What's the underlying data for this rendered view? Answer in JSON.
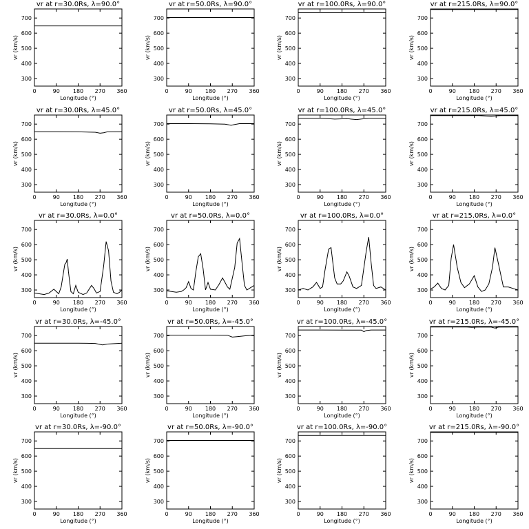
{
  "figure": {
    "title_template": "v_r at r={r}Rs, λ={lat}°",
    "rows_lat": [
      "90.0",
      "45.0",
      "0.0",
      "-45.0",
      "-90.0"
    ],
    "cols_r": [
      "30.0",
      "50.0",
      "100.0",
      "215.0"
    ]
  },
  "chart_data": [
    {
      "type": "line",
      "title": "vr at r=30.0Rs, λ=90.0°",
      "xlabel": "Longitude (°)",
      "ylabel": "vr (km/s)",
      "xlim": [
        0,
        360
      ],
      "ylim": [
        250,
        760
      ],
      "xticks": [
        0,
        90,
        180,
        270,
        360
      ],
      "yticks": [
        300,
        400,
        500,
        600,
        700
      ],
      "x": [
        0,
        360
      ],
      "y": [
        648,
        648
      ]
    },
    {
      "type": "line",
      "title": "vr at r=50.0Rs, λ=90.0°",
      "xlabel": "Longitude (°)",
      "ylabel": "vr (km/s)",
      "xlim": [
        0,
        360
      ],
      "ylim": [
        250,
        760
      ],
      "xticks": [
        0,
        90,
        180,
        270,
        360
      ],
      "yticks": [
        300,
        400,
        500,
        600,
        700
      ],
      "x": [
        0,
        360
      ],
      "y": [
        703,
        703
      ]
    },
    {
      "type": "line",
      "title": "vr at r=100.0Rs, λ=90.0°",
      "xlabel": "Longitude (°)",
      "ylabel": "vr (km/s)",
      "xlim": [
        0,
        360
      ],
      "ylim": [
        250,
        760
      ],
      "xticks": [
        0,
        90,
        180,
        270,
        360
      ],
      "yticks": [
        300,
        400,
        500,
        600,
        700
      ],
      "x": [
        0,
        360
      ],
      "y": [
        735,
        735
      ]
    },
    {
      "type": "line",
      "title": "vr at r=215.0Rs, λ=90.0°",
      "xlabel": "Longitude (°)",
      "ylabel": "vr (km/s)",
      "xlim": [
        0,
        360
      ],
      "ylim": [
        250,
        760
      ],
      "xticks": [
        0,
        90,
        180,
        270,
        360
      ],
      "yticks": [
        300,
        400,
        500,
        600,
        700
      ],
      "x": [
        0,
        360
      ],
      "y": [
        757,
        757
      ]
    },
    {
      "type": "line",
      "title": "vr at r=30.0Rs, λ=45.0°",
      "xlabel": "Longitude (°)",
      "ylabel": "vr (km/s)",
      "xlim": [
        0,
        360
      ],
      "ylim": [
        250,
        760
      ],
      "xticks": [
        0,
        90,
        180,
        270,
        360
      ],
      "yticks": [
        300,
        400,
        500,
        600,
        700
      ],
      "x": [
        0,
        90,
        180,
        250,
        270,
        285,
        300,
        360
      ],
      "y": [
        650,
        650,
        649,
        646,
        640,
        643,
        649,
        650
      ]
    },
    {
      "type": "line",
      "title": "vr at r=50.0Rs, λ=45.0°",
      "xlabel": "Longitude (°)",
      "ylabel": "vr (km/s)",
      "xlim": [
        0,
        360
      ],
      "ylim": [
        250,
        760
      ],
      "xticks": [
        0,
        90,
        180,
        270,
        360
      ],
      "yticks": [
        300,
        400,
        500,
        600,
        700
      ],
      "x": [
        0,
        90,
        180,
        240,
        265,
        280,
        300,
        360
      ],
      "y": [
        703,
        703,
        702,
        700,
        692,
        697,
        703,
        703
      ]
    },
    {
      "type": "line",
      "title": "vr at r=100.0Rs, λ=45.0°",
      "xlabel": "Longitude (°)",
      "ylabel": "vr (km/s)",
      "xlim": [
        0,
        360
      ],
      "ylim": [
        250,
        760
      ],
      "xticks": [
        0,
        90,
        180,
        270,
        360
      ],
      "yticks": [
        300,
        400,
        500,
        600,
        700
      ],
      "x": [
        0,
        100,
        150,
        200,
        240,
        260,
        290,
        360
      ],
      "y": [
        738,
        738,
        733,
        736,
        730,
        734,
        738,
        738
      ]
    },
    {
      "type": "line",
      "title": "vr at r=215.0Rs, λ=45.0°",
      "xlabel": "Longitude (°)",
      "ylabel": "vr (km/s)",
      "xlim": [
        0,
        360
      ],
      "ylim": [
        250,
        760
      ],
      "xticks": [
        0,
        90,
        180,
        270,
        360
      ],
      "yticks": [
        300,
        400,
        500,
        600,
        700
      ],
      "x": [
        0,
        200,
        250,
        270,
        290,
        360
      ],
      "y": [
        757,
        757,
        751,
        754,
        757,
        757
      ]
    },
    {
      "type": "line",
      "title": "vr at r=30.0Rs, λ=0.0°",
      "xlabel": "Longitude (°)",
      "ylabel": "vr (km/s)",
      "xlim": [
        0,
        360
      ],
      "ylim": [
        250,
        760
      ],
      "xticks": [
        0,
        90,
        180,
        270,
        360
      ],
      "yticks": [
        300,
        400,
        500,
        600,
        700
      ],
      "x": [
        0,
        20,
        40,
        60,
        80,
        90,
        100,
        110,
        120,
        125,
        130,
        135,
        140,
        150,
        160,
        170,
        180,
        200,
        215,
        235,
        245,
        255,
        270,
        285,
        295,
        305,
        315,
        325,
        340,
        350,
        360
      ],
      "y": [
        280,
        275,
        270,
        280,
        305,
        290,
        275,
        320,
        420,
        470,
        480,
        505,
        420,
        290,
        275,
        330,
        285,
        270,
        280,
        330,
        310,
        280,
        290,
        460,
        620,
        560,
        360,
        285,
        275,
        285,
        300
      ]
    },
    {
      "type": "line",
      "title": "vr at r=50.0Rs, λ=0.0°",
      "xlabel": "Longitude (°)",
      "ylabel": "vr (km/s)",
      "xlim": [
        0,
        360
      ],
      "ylim": [
        250,
        760
      ],
      "xticks": [
        0,
        90,
        180,
        270,
        360
      ],
      "yticks": [
        300,
        400,
        500,
        600,
        700
      ],
      "x": [
        0,
        20,
        40,
        60,
        70,
        80,
        90,
        100,
        110,
        120,
        130,
        140,
        150,
        160,
        170,
        180,
        200,
        215,
        230,
        240,
        250,
        260,
        280,
        290,
        300,
        310,
        320,
        330,
        345,
        360
      ],
      "y": [
        295,
        290,
        285,
        290,
        300,
        315,
        355,
        310,
        300,
        420,
        520,
        540,
        440,
        300,
        350,
        305,
        300,
        335,
        380,
        350,
        320,
        305,
        450,
        610,
        640,
        480,
        330,
        300,
        315,
        330
      ]
    },
    {
      "type": "line",
      "title": "vr at r=100.0Rs, λ=0.0°",
      "xlabel": "Longitude (°)",
      "ylabel": "vr (km/s)",
      "xlim": [
        0,
        360
      ],
      "ylim": [
        250,
        760
      ],
      "xticks": [
        0,
        90,
        180,
        270,
        360
      ],
      "yticks": [
        300,
        400,
        500,
        600,
        700
      ],
      "x": [
        0,
        20,
        40,
        60,
        75,
        90,
        100,
        110,
        125,
        135,
        150,
        160,
        175,
        185,
        200,
        210,
        225,
        240,
        260,
        280,
        290,
        300,
        310,
        320,
        340,
        360
      ],
      "y": [
        300,
        310,
        300,
        320,
        350,
        310,
        320,
        430,
        570,
        580,
        380,
        340,
        340,
        360,
        420,
        390,
        320,
        310,
        330,
        560,
        650,
        480,
        330,
        310,
        320,
        300
      ]
    },
    {
      "type": "line",
      "title": "vr at r=215.0Rs, λ=0.0°",
      "xlabel": "Longitude (°)",
      "ylabel": "vr (km/s)",
      "xlim": [
        0,
        360
      ],
      "ylim": [
        250,
        760
      ],
      "xticks": [
        0,
        90,
        180,
        270,
        360
      ],
      "yticks": [
        300,
        400,
        500,
        600,
        700
      ],
      "x": [
        0,
        15,
        30,
        45,
        60,
        75,
        85,
        95,
        110,
        125,
        140,
        160,
        180,
        195,
        210,
        225,
        240,
        255,
        265,
        280,
        300,
        320,
        340,
        360
      ],
      "y": [
        305,
        320,
        345,
        310,
        300,
        330,
        510,
        600,
        450,
        350,
        315,
        340,
        395,
        320,
        290,
        300,
        340,
        450,
        580,
        470,
        320,
        320,
        310,
        300
      ]
    },
    {
      "type": "line",
      "title": "vr at r=30.0Rs, λ=-45.0°",
      "xlabel": "Longitude (°)",
      "ylabel": "vr (km/s)",
      "xlim": [
        0,
        360
      ],
      "ylim": [
        250,
        760
      ],
      "xticks": [
        0,
        90,
        180,
        270,
        360
      ],
      "yticks": [
        300,
        400,
        500,
        600,
        700
      ],
      "x": [
        0,
        90,
        180,
        250,
        280,
        300,
        360
      ],
      "y": [
        650,
        650,
        650,
        648,
        638,
        644,
        650
      ]
    },
    {
      "type": "line",
      "title": "vr at r=50.0Rs, λ=-45.0°",
      "xlabel": "Longitude (°)",
      "ylabel": "vr (km/s)",
      "xlim": [
        0,
        360
      ],
      "ylim": [
        250,
        760
      ],
      "xticks": [
        0,
        90,
        180,
        270,
        360
      ],
      "yticks": [
        300,
        400,
        500,
        600,
        700
      ],
      "x": [
        0,
        90,
        180,
        250,
        270,
        290,
        320,
        360
      ],
      "y": [
        703,
        703,
        703,
        702,
        690,
        693,
        698,
        703
      ]
    },
    {
      "type": "line",
      "title": "vr at r=100.0Rs, λ=-45.0°",
      "xlabel": "Longitude (°)",
      "ylabel": "vr (km/s)",
      "xlim": [
        0,
        360
      ],
      "ylim": [
        250,
        760
      ],
      "xticks": [
        0,
        90,
        180,
        270,
        360
      ],
      "yticks": [
        300,
        400,
        500,
        600,
        700
      ],
      "x": [
        0,
        100,
        200,
        260,
        270,
        280,
        300,
        360
      ],
      "y": [
        737,
        737,
        736,
        736,
        726,
        733,
        737,
        737
      ]
    },
    {
      "type": "line",
      "title": "vr at r=215.0Rs, λ=-45.0°",
      "xlabel": "Longitude (°)",
      "ylabel": "vr (km/s)",
      "xlim": [
        0,
        360
      ],
      "ylim": [
        250,
        760
      ],
      "xticks": [
        0,
        90,
        180,
        270,
        360
      ],
      "yticks": [
        300,
        400,
        500,
        600,
        700
      ],
      "x": [
        0,
        150,
        170,
        200,
        250,
        265,
        280,
        360
      ],
      "y": [
        757,
        757,
        754,
        757,
        756,
        750,
        756,
        757
      ]
    },
    {
      "type": "line",
      "title": "vr at r=30.0Rs, λ=-90.0°",
      "xlabel": "Longitude (°)",
      "ylabel": "vr (km/s)",
      "xlim": [
        0,
        360
      ],
      "ylim": [
        250,
        760
      ],
      "xticks": [
        0,
        90,
        180,
        270,
        360
      ],
      "yticks": [
        300,
        400,
        500,
        600,
        700
      ],
      "x": [
        0,
        360
      ],
      "y": [
        650,
        650
      ]
    },
    {
      "type": "line",
      "title": "vr at r=50.0Rs, λ=-90.0°",
      "xlabel": "Longitude (°)",
      "ylabel": "vr (km/s)",
      "xlim": [
        0,
        360
      ],
      "ylim": [
        250,
        760
      ],
      "xticks": [
        0,
        90,
        180,
        270,
        360
      ],
      "yticks": [
        300,
        400,
        500,
        600,
        700
      ],
      "x": [
        0,
        360
      ],
      "y": [
        703,
        703
      ]
    },
    {
      "type": "line",
      "title": "vr at r=100.0Rs, λ=-90.0°",
      "xlabel": "Longitude (°)",
      "ylabel": "vr (km/s)",
      "xlim": [
        0,
        360
      ],
      "ylim": [
        250,
        760
      ],
      "xticks": [
        0,
        90,
        180,
        270,
        360
      ],
      "yticks": [
        300,
        400,
        500,
        600,
        700
      ],
      "x": [
        0,
        360
      ],
      "y": [
        736,
        736
      ]
    },
    {
      "type": "line",
      "title": "vr at r=215.0Rs, λ=-90.0°",
      "xlabel": "Longitude (°)",
      "ylabel": "vr (km/s)",
      "xlim": [
        0,
        360
      ],
      "ylim": [
        250,
        760
      ],
      "xticks": [
        0,
        90,
        180,
        270,
        360
      ],
      "yticks": [
        300,
        400,
        500,
        600,
        700
      ],
      "x": [
        0,
        360
      ],
      "y": [
        757,
        757
      ]
    }
  ]
}
